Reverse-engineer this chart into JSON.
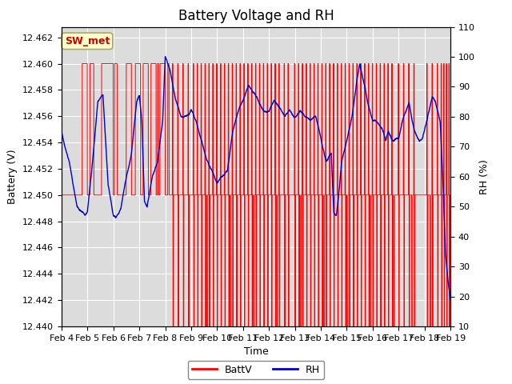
{
  "title": "Battery Voltage and RH",
  "xlabel": "Time",
  "ylabel_left": "Battery (V)",
  "ylabel_right": "RH (%)",
  "annotation": "SW_met",
  "ylim_left": [
    12.44,
    12.4628
  ],
  "ylim_right": [
    10,
    110
  ],
  "yticks_left": [
    12.44,
    12.442,
    12.444,
    12.446,
    12.448,
    12.45,
    12.452,
    12.454,
    12.456,
    12.458,
    12.46,
    12.462
  ],
  "yticks_right": [
    10,
    20,
    30,
    40,
    50,
    60,
    70,
    80,
    90,
    100,
    110
  ],
  "xtick_labels": [
    "Feb 4",
    "Feb 5",
    "Feb 6",
    "Feb 7",
    "Feb 8",
    "Feb 9",
    "Feb 10",
    "Feb 11",
    "Feb 12",
    "Feb 13",
    "Feb 14",
    "Feb 15",
    "Feb 16",
    "Feb 17",
    "Feb 18",
    "Feb 19"
  ],
  "batt_color": "#FF0000",
  "rh_color": "#0000CC",
  "bg_color": "#DCDCDC",
  "annotation_bg": "#FFFFCC",
  "annotation_edge": "#AAAA66",
  "annotation_text_color": "#CC0000",
  "legend_batt": "BattV",
  "legend_rh": "RH",
  "title_fontsize": 12,
  "label_fontsize": 9,
  "tick_fontsize": 8
}
